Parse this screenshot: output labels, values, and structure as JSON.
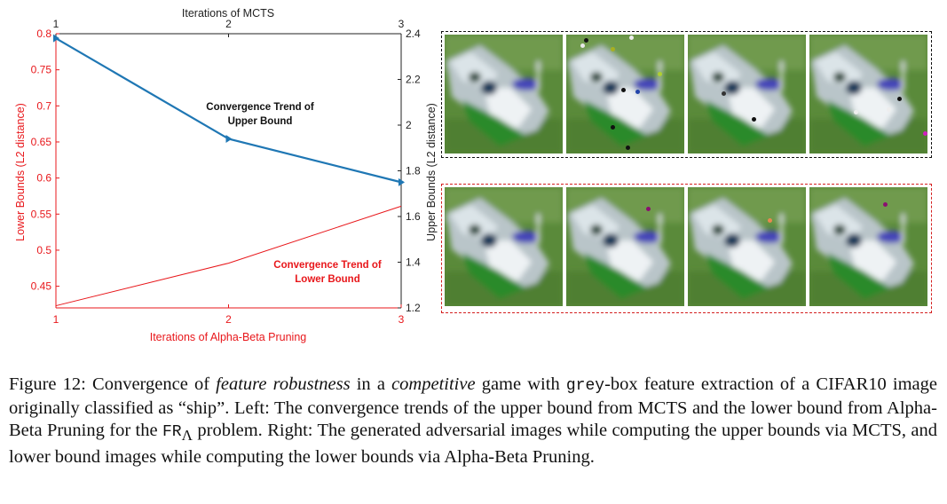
{
  "chart_data": {
    "type": "line",
    "title_top_axis": "Iterations of MCTS",
    "xlabel": "Iterations of Alpha-Beta Pruning",
    "ylabel_left": "Lower Bounds (L2 distance)",
    "ylabel_right": "Upper Bounds (L2 distance)",
    "x": [
      1,
      2,
      3
    ],
    "x_ticks": [
      "1",
      "2",
      "3"
    ],
    "left_ticks": [
      "0.45",
      "0.5",
      "0.55",
      "0.6",
      "0.65",
      "0.7",
      "0.75",
      "0.8"
    ],
    "right_ticks": [
      "1.2",
      "1.4",
      "1.6",
      "1.8",
      "2",
      "2.2",
      "2.4"
    ],
    "ylim_left": [
      0.42,
      0.8
    ],
    "ylim_right": [
      1.2,
      2.4
    ],
    "series": [
      {
        "name": "Convergence Trend of Upper Bound",
        "axis": "right",
        "color": "#1f77b4",
        "values": [
          2.38,
          1.94,
          1.75
        ]
      },
      {
        "name": "Convergence Trend of Lower Bound",
        "axis": "left",
        "color": "#e8171b",
        "values": [
          0.423,
          0.482,
          0.561
        ]
      }
    ],
    "annotations": [
      {
        "lines": [
          "Convergence Trend of",
          "Upper Bound"
        ],
        "color": "#111111"
      },
      {
        "lines": [
          "Convergence Trend of",
          "Lower Bound"
        ],
        "color": "#e8171b"
      }
    ]
  },
  "images": {
    "upper_row": {
      "border": "black dashed",
      "count": 4
    },
    "lower_row": {
      "border": "red dashed",
      "count": 4
    }
  },
  "caption": {
    "label": "Figure 12:",
    "p1": " Convergence of ",
    "feature_robustness": "feature robustness",
    "p2": " in a ",
    "competitive": "competitive",
    "p3": " game with ",
    "grey": "grey",
    "p4": "-box feature extraction of a CIFAR10 image originally classified as “ship”. Left: The convergence trends of the upper bound from MCTS and the lower bound from Alpha-Beta Pruning for the ",
    "fr": "FR",
    "lambda": "Λ",
    "p5": " problem. Right: The generated adversarial images while computing the upper bounds via MCTS, and lower bound images while computing the lower bounds via Alpha-Beta Pruning."
  }
}
